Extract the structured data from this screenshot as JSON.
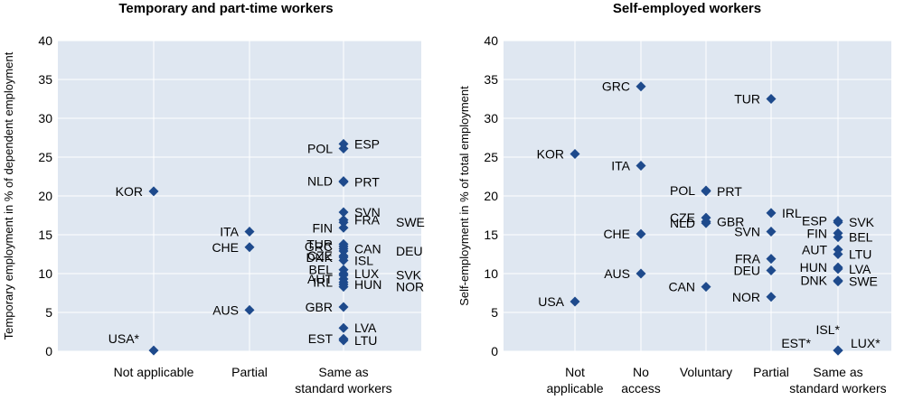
{
  "colors": {
    "plot_bg": "#dfe7f1",
    "grid": "#ffffff",
    "marker": "#1e4a8c",
    "text": "#000000"
  },
  "chart_data": [
    {
      "type": "scatter",
      "title": "Temporary and part-time workers",
      "ylabel": "Temporary employment in % of dependent employment",
      "ylim": [
        0,
        40
      ],
      "yticks": [
        "0",
        "5",
        "10",
        "15",
        "20",
        "25",
        "30",
        "35",
        "40"
      ],
      "categories": [
        [
          "Not applicable"
        ],
        [
          "Partial"
        ],
        [
          "Same as",
          "standard workers"
        ]
      ],
      "points": [
        {
          "label": "KOR",
          "cat": 0,
          "y": 20.6,
          "side": "left"
        },
        {
          "label": "USA*",
          "cat": 0,
          "y": 0.1,
          "side": "left"
        },
        {
          "label": "ITA",
          "cat": 1,
          "y": 15.4,
          "side": "left"
        },
        {
          "label": "CHE",
          "cat": 1,
          "y": 13.4,
          "side": "left"
        },
        {
          "label": "AUS",
          "cat": 1,
          "y": 5.3,
          "side": "left"
        },
        {
          "label": "ESP",
          "cat": 2,
          "y": 26.7,
          "side": "right"
        },
        {
          "label": "POL",
          "cat": 2,
          "y": 26.1,
          "side": "left"
        },
        {
          "label": "NLD",
          "cat": 2,
          "y": 21.9,
          "side": "left"
        },
        {
          "label": "PRT",
          "cat": 2,
          "y": 21.8,
          "side": "right"
        },
        {
          "label": "SVN",
          "cat": 2,
          "y": 17.9,
          "side": "right"
        },
        {
          "label": "FRA",
          "cat": 2,
          "y": 16.9,
          "side": "right"
        },
        {
          "label": "SWE",
          "cat": 2,
          "y": 16.6,
          "side": "far-right"
        },
        {
          "label": "FIN",
          "cat": 2,
          "y": 15.9,
          "side": "left"
        },
        {
          "label": "TUR",
          "cat": 2,
          "y": 13.8,
          "side": "left"
        },
        {
          "label": "GRC",
          "cat": 2,
          "y": 13.5,
          "side": "left"
        },
        {
          "label": "CAN",
          "cat": 2,
          "y": 13.2,
          "side": "right"
        },
        {
          "label": "DEU",
          "cat": 2,
          "y": 12.9,
          "side": "far-right"
        },
        {
          "label": "CZE",
          "cat": 2,
          "y": 12.3,
          "side": "left"
        },
        {
          "label": "DNK",
          "cat": 2,
          "y": 12.1,
          "side": "left"
        },
        {
          "label": "ISL",
          "cat": 2,
          "y": 11.7,
          "side": "right"
        },
        {
          "label": "BEL",
          "cat": 2,
          "y": 10.5,
          "side": "left"
        },
        {
          "label": "LUX",
          "cat": 2,
          "y": 10.0,
          "side": "right"
        },
        {
          "label": "SVK",
          "cat": 2,
          "y": 9.8,
          "side": "far-right"
        },
        {
          "label": "AUT",
          "cat": 2,
          "y": 9.3,
          "side": "left"
        },
        {
          "label": "IRL",
          "cat": 2,
          "y": 8.9,
          "side": "left"
        },
        {
          "label": "HUN",
          "cat": 2,
          "y": 8.6,
          "side": "right"
        },
        {
          "label": "NOR",
          "cat": 2,
          "y": 8.3,
          "side": "far-right"
        },
        {
          "label": "GBR",
          "cat": 2,
          "y": 5.7,
          "side": "left"
        },
        {
          "label": "LVA",
          "cat": 2,
          "y": 3.0,
          "side": "right"
        },
        {
          "label": "EST",
          "cat": 2,
          "y": 1.6,
          "side": "left"
        },
        {
          "label": "LTU",
          "cat": 2,
          "y": 1.4,
          "side": "right"
        }
      ]
    },
    {
      "type": "scatter",
      "title": "Self-employed workers",
      "ylabel": "Self-employment in % of total employment",
      "ylim": [
        0,
        40
      ],
      "yticks": [
        "0",
        "5",
        "10",
        "15",
        "20",
        "25",
        "30",
        "35",
        "40"
      ],
      "categories": [
        [
          "Not",
          "applicable"
        ],
        [
          "No",
          "access"
        ],
        [
          "Voluntary"
        ],
        [
          "Partial"
        ],
        [
          "Same as",
          "standard workers"
        ]
      ],
      "points": [
        {
          "label": "KOR",
          "cat": 0,
          "y": 25.4,
          "side": "left"
        },
        {
          "label": "USA",
          "cat": 0,
          "y": 6.4,
          "side": "left"
        },
        {
          "label": "GRC",
          "cat": 1,
          "y": 34.1,
          "side": "left"
        },
        {
          "label": "ITA",
          "cat": 1,
          "y": 23.9,
          "side": "left"
        },
        {
          "label": "CHE",
          "cat": 1,
          "y": 15.1,
          "side": "left"
        },
        {
          "label": "AUS",
          "cat": 1,
          "y": 10.0,
          "side": "left"
        },
        {
          "label": "POL",
          "cat": 2,
          "y": 20.7,
          "side": "left"
        },
        {
          "label": "PRT",
          "cat": 2,
          "y": 20.6,
          "side": "right"
        },
        {
          "label": "CZE",
          "cat": 2,
          "y": 17.2,
          "side": "left"
        },
        {
          "label": "GBR",
          "cat": 2,
          "y": 16.7,
          "side": "right"
        },
        {
          "label": "NLD",
          "cat": 2,
          "y": 16.5,
          "side": "left"
        },
        {
          "label": "CAN",
          "cat": 2,
          "y": 8.3,
          "side": "left"
        },
        {
          "label": "TUR",
          "cat": 3,
          "y": 32.5,
          "side": "left"
        },
        {
          "label": "IRL",
          "cat": 3,
          "y": 17.8,
          "side": "right"
        },
        {
          "label": "SVN",
          "cat": 3,
          "y": 15.4,
          "side": "left"
        },
        {
          "label": "FRA",
          "cat": 3,
          "y": 11.9,
          "side": "left"
        },
        {
          "label": "DEU",
          "cat": 3,
          "y": 10.4,
          "side": "left"
        },
        {
          "label": "NOR",
          "cat": 3,
          "y": 7.0,
          "side": "left"
        },
        {
          "label": "ESP",
          "cat": 4,
          "y": 16.8,
          "side": "left"
        },
        {
          "label": "SVK",
          "cat": 4,
          "y": 16.6,
          "side": "right"
        },
        {
          "label": "FIN",
          "cat": 4,
          "y": 15.2,
          "side": "left"
        },
        {
          "label": "BEL",
          "cat": 4,
          "y": 14.7,
          "side": "right"
        },
        {
          "label": "AUT",
          "cat": 4,
          "y": 13.1,
          "side": "left"
        },
        {
          "label": "LTU",
          "cat": 4,
          "y": 12.5,
          "side": "right"
        },
        {
          "label": "HUN",
          "cat": 4,
          "y": 10.8,
          "side": "left"
        },
        {
          "label": "LVA",
          "cat": 4,
          "y": 10.6,
          "side": "right"
        },
        {
          "label": "DNK",
          "cat": 4,
          "y": 9.1,
          "side": "left"
        },
        {
          "label": "SWE",
          "cat": 4,
          "y": 9.0,
          "side": "right"
        },
        {
          "label": "ISL*",
          "cat": 4,
          "y": 0.1,
          "side": "none"
        },
        {
          "label": "EST*",
          "cat": 4,
          "y": 0.1,
          "side": "none"
        },
        {
          "label": "LUX*",
          "cat": 4,
          "y": 0.1,
          "side": "right"
        }
      ]
    }
  ],
  "annotations": [
    {
      "chart": 1,
      "label": "ISL*",
      "note": "label above-left of zero marker"
    },
    {
      "chart": 1,
      "label": "EST*",
      "note": "label left of zero marker"
    }
  ]
}
